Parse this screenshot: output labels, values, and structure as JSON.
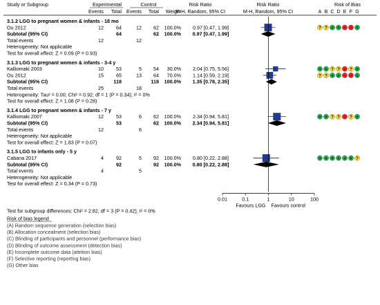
{
  "header": {
    "study_col": "Study or Subgroup",
    "exp_group": "Experimental",
    "ctrl_group": "Control",
    "events": "Events",
    "total": "Total",
    "weight": "Weight",
    "rr_title": "Risk Ratio",
    "rr_sub": "M-H, Random, 95% CI",
    "rr_title2": "Risk Ratio",
    "rr_sub2": "M-H, Random, 95% CI",
    "rob_title": "Risk of Bias",
    "rob_letters": [
      "A",
      "B",
      "C",
      "D",
      "E",
      "F",
      "G"
    ]
  },
  "subgroups": [
    {
      "title": "3.1.2 LGG to pregnant women & infants - 18 mo",
      "studies": [
        {
          "name": "Ou 2012",
          "e_events": "12",
          "e_total": "64",
          "c_events": "12",
          "c_total": "62",
          "weight": "100.0%",
          "ci_text": "0.97 [0.47, 1.99]",
          "rr": 0.97,
          "lo": 0.47,
          "hi": 1.99,
          "wfrac": 1.0,
          "rob": [
            "?",
            "?",
            "+",
            "+",
            "-",
            "-",
            "+"
          ]
        }
      ],
      "subtotal": {
        "label": "Subtotal (95% CI)",
        "e_total": "64",
        "c_total": "62",
        "weight": "100.0%",
        "ci_text": "0.97 [0.47, 1.99]",
        "rr": 0.97,
        "lo": 0.47,
        "hi": 1.99
      },
      "total_events": {
        "label": "Total events",
        "e": "12",
        "c": "12"
      },
      "heterogeneity": "Heterogeneity: Not applicable",
      "overall": "Test for overall effect: Z = 0.09 (P = 0.93)"
    },
    {
      "title": "3.1.3 LGG to pregnant women & infants - 3-4 y",
      "studies": [
        {
          "name": "Kalliomaki 2003",
          "e_events": "10",
          "e_total": "53",
          "c_events": "5",
          "c_total": "54",
          "weight": "30.0%",
          "ci_text": "2.04 [0.75, 5.56]",
          "rr": 2.04,
          "lo": 0.75,
          "hi": 5.56,
          "wfrac": 0.3,
          "rob": [
            "+",
            "+",
            "?",
            "?",
            "-",
            "?",
            "+"
          ]
        },
        {
          "name": "Ou 2012",
          "e_events": "15",
          "e_total": "65",
          "c_events": "13",
          "c_total": "64",
          "weight": "70.0%",
          "ci_text": "1.14 [0.59, 2.19]",
          "rr": 1.14,
          "lo": 0.59,
          "hi": 2.19,
          "wfrac": 0.7,
          "rob": [
            "?",
            "?",
            "+",
            "+",
            "-",
            "-",
            "+"
          ]
        }
      ],
      "subtotal": {
        "label": "Subtotal (95% CI)",
        "e_total": "118",
        "c_total": "118",
        "weight": "100.0%",
        "ci_text": "1.35 [0.78, 2.35]",
        "rr": 1.35,
        "lo": 0.78,
        "hi": 2.35
      },
      "total_events": {
        "label": "Total events",
        "e": "25",
        "c": "18"
      },
      "heterogeneity": "Heterogeneity: Tau² = 0.00; Chi² = 0.92, df = 1 (P = 0.34); I² = 0%",
      "overall": "Test for overall effect: Z = 1.08 (P = 0.28)"
    },
    {
      "title": "3.1.4 LGG to pregnant women & infants - 7 y",
      "studies": [
        {
          "name": "Kalliomaki 2007",
          "e_events": "12",
          "e_total": "53",
          "c_events": "6",
          "c_total": "62",
          "weight": "100.0%",
          "ci_text": "2.34 [0.94, 5.81]",
          "rr": 2.34,
          "lo": 0.94,
          "hi": 5.81,
          "wfrac": 1.0,
          "rob": [
            "+",
            "+",
            "?",
            "?",
            "-",
            "?",
            "+"
          ]
        }
      ],
      "subtotal": {
        "label": "Subtotal (95% CI)",
        "e_total": "53",
        "c_total": "62",
        "weight": "100.0%",
        "ci_text": "2.34 [0.94, 5.81]",
        "rr": 2.34,
        "lo": 0.94,
        "hi": 5.81
      },
      "total_events": {
        "label": "Total events",
        "e": "12",
        "c": "6"
      },
      "heterogeneity": "Heterogeneity: Not applicable",
      "overall": "Test for overall effect: Z = 1.83 (P = 0.07)"
    },
    {
      "title": "3.1.5 LGG to infants only - 5 y",
      "studies": [
        {
          "name": "Cabana 2017",
          "e_events": "4",
          "e_total": "92",
          "c_events": "5",
          "c_total": "92",
          "weight": "100.0%",
          "ci_text": "0.80 [0.22, 2.88]",
          "rr": 0.8,
          "lo": 0.22,
          "hi": 2.88,
          "wfrac": 1.0,
          "rob": [
            "+",
            "+",
            "+",
            "+",
            "+",
            "+",
            "?"
          ]
        }
      ],
      "subtotal": {
        "label": "Subtotal (95% CI)",
        "e_total": "92",
        "c_total": "92",
        "weight": "100.0%",
        "ci_text": "0.80 [0.22, 2.88]",
        "rr": 0.8,
        "lo": 0.22,
        "hi": 2.88
      },
      "total_events": {
        "label": "Total events",
        "e": "4",
        "c": "5"
      },
      "heterogeneity": "Heterogeneity: Not applicable",
      "overall": "Test for overall effect: Z = 0.34 (P = 0.73)"
    }
  ],
  "axis": {
    "ticks": [
      0.01,
      0.1,
      1,
      10,
      100
    ],
    "tick_labels": [
      "0.01",
      "0.1",
      "1",
      "10",
      "100"
    ],
    "favours_left": "Favours LGG",
    "favours_right": "Favours control"
  },
  "footer": {
    "subgroup_test": "Test for subgroup differences: Chi² = 2.82, df = 3 (P = 0.42), I² = 0%",
    "legend_title": "Risk of bias legend",
    "legend_items": [
      {
        "letter": "(A)",
        "text": "Random sequence generation (selection bias)"
      },
      {
        "letter": "(B)",
        "text": "Allocation concealment (selection bias)"
      },
      {
        "letter": "(C)",
        "text": "Blinding of participants and personnel (performance bias)"
      },
      {
        "letter": "(D)",
        "text": "Blinding of outcome assessment (detection bias)"
      },
      {
        "letter": "(E)",
        "text": "Incomplete outcome data (attrition bias)"
      },
      {
        "letter": "(F)",
        "text": "Selective reporting (reporting bias)"
      },
      {
        "letter": "(G)",
        "text": "Other bias"
      }
    ]
  },
  "colors": {
    "low": "#22b14c",
    "unclear": "#ffe033",
    "high": "#ed1c24",
    "marker": "#1f3a8f",
    "diamond": "#000000"
  },
  "chart_data": {
    "type": "forest",
    "scale": "log",
    "xlim": [
      0.01,
      100
    ],
    "studies": [
      {
        "subgroup": "3.1.2",
        "name": "Ou 2012",
        "rr": 0.97,
        "lo": 0.47,
        "hi": 1.99,
        "weight": 100.0
      },
      {
        "subgroup": "3.1.3",
        "name": "Kalliomaki 2003",
        "rr": 2.04,
        "lo": 0.75,
        "hi": 5.56,
        "weight": 30.0
      },
      {
        "subgroup": "3.1.3",
        "name": "Ou 2012",
        "rr": 1.14,
        "lo": 0.59,
        "hi": 2.19,
        "weight": 70.0
      },
      {
        "subgroup": "3.1.4",
        "name": "Kalliomaki 2007",
        "rr": 2.34,
        "lo": 0.94,
        "hi": 5.81,
        "weight": 100.0
      },
      {
        "subgroup": "3.1.5",
        "name": "Cabana 2017",
        "rr": 0.8,
        "lo": 0.22,
        "hi": 2.88,
        "weight": 100.0
      }
    ],
    "subtotals": [
      {
        "subgroup": "3.1.2",
        "rr": 0.97,
        "lo": 0.47,
        "hi": 1.99
      },
      {
        "subgroup": "3.1.3",
        "rr": 1.35,
        "lo": 0.78,
        "hi": 2.35
      },
      {
        "subgroup": "3.1.4",
        "rr": 2.34,
        "lo": 0.94,
        "hi": 5.81
      },
      {
        "subgroup": "3.1.5",
        "rr": 0.8,
        "lo": 0.22,
        "hi": 2.88
      }
    ]
  }
}
